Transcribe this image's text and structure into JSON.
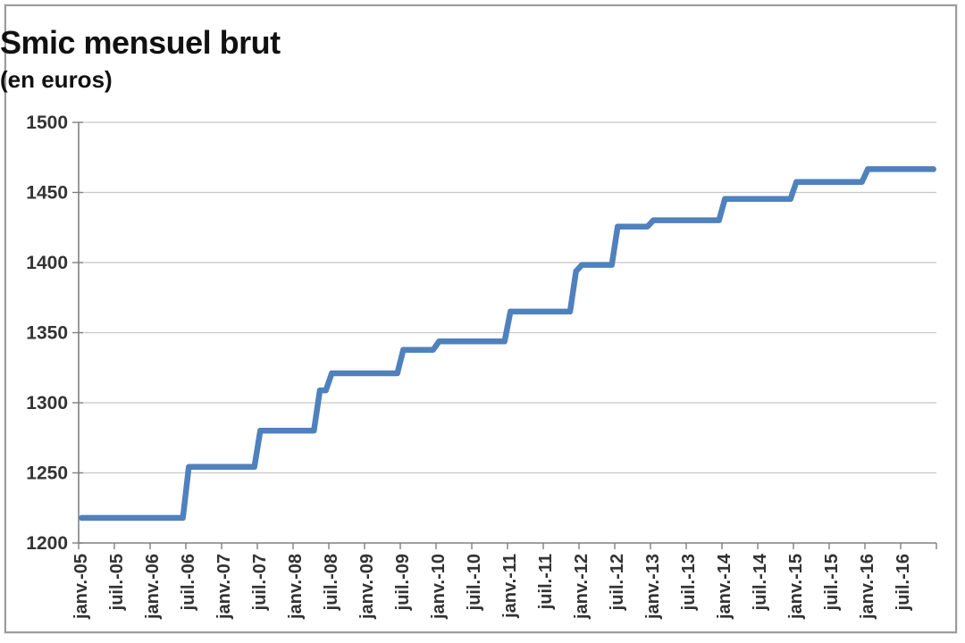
{
  "chart_data": {
    "type": "line",
    "title": "Smic mensuel brut",
    "subtitle": "(en euros)",
    "xlabel": "",
    "ylabel": "",
    "ylim": [
      1200,
      1500
    ],
    "y_ticks": [
      1200,
      1250,
      1300,
      1350,
      1400,
      1450,
      1500
    ],
    "x_tick_labels": [
      "janv.-05",
      "juil.-05",
      "janv.-06",
      "juil.-06",
      "janv.-07",
      "juil.-07",
      "janv.-08",
      "juil.-08",
      "janv.-09",
      "juil.-09",
      "janv.-10",
      "juil.-10",
      "janv.-11",
      "juil.-11",
      "janv.-12",
      "juil.-12",
      "janv.-13",
      "juil.-13",
      "janv.-14",
      "juil.-14",
      "janv.-15",
      "juil.-15",
      "janv.-16",
      "juil.-16"
    ],
    "x_start": "2005-01",
    "x_end": "2016-12",
    "grid": true,
    "legend": "none",
    "series": [
      {
        "name": "Smic mensuel brut (euros)",
        "color": "#4F81BD",
        "step_changes": [
          {
            "date": "2005-01",
            "value": 1217.88
          },
          {
            "date": "2006-07",
            "value": 1254.28
          },
          {
            "date": "2007-07",
            "value": 1280.07
          },
          {
            "date": "2008-05",
            "value": 1308.88
          },
          {
            "date": "2008-07",
            "value": 1321.02
          },
          {
            "date": "2009-07",
            "value": 1337.7
          },
          {
            "date": "2010-01",
            "value": 1343.77
          },
          {
            "date": "2011-01",
            "value": 1365.0
          },
          {
            "date": "2011-12",
            "value": 1393.82
          },
          {
            "date": "2012-01",
            "value": 1398.37
          },
          {
            "date": "2012-07",
            "value": 1425.67
          },
          {
            "date": "2013-01",
            "value": 1430.22
          },
          {
            "date": "2014-01",
            "value": 1445.38
          },
          {
            "date": "2015-01",
            "value": 1457.52
          },
          {
            "date": "2016-01",
            "value": 1466.62
          }
        ]
      }
    ],
    "style": {
      "background": "#ffffff",
      "frame_border_color": "#9c9c9c",
      "gridline_color": "#c8c8c8",
      "axis_color": "#808080",
      "tick_color": "#808080",
      "label_color": "#333333",
      "title_color": "#111111"
    }
  }
}
